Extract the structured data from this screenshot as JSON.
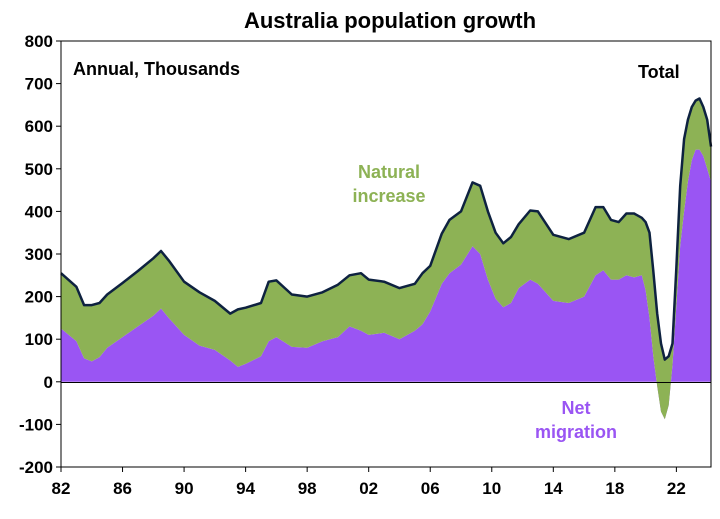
{
  "chart_data": {
    "type": "area",
    "title": "Australia population growth",
    "subtitle": "Annual, Thousands",
    "xlabel": "",
    "ylabel": "",
    "x_tick_labels": [
      "82",
      "86",
      "90",
      "94",
      "98",
      "02",
      "06",
      "10",
      "14",
      "18",
      "22"
    ],
    "y_ticks": [
      800,
      700,
      600,
      500,
      400,
      300,
      200,
      100,
      0,
      -100,
      -200
    ],
    "ylim": [
      -200,
      800
    ],
    "xlim": [
      1982,
      2024.25
    ],
    "grid": false,
    "annotations": {
      "total": "Total",
      "natural_line1": "Natural",
      "natural_line2": "increase",
      "net_line1": "Net",
      "net_line2": "migration"
    },
    "colors": {
      "net_migration": "#9a55f3",
      "natural_increase": "#8db255",
      "total_line": "#0e2240"
    },
    "x": [
      1982,
      1983,
      1983.5,
      1984,
      1984.5,
      1985,
      1986,
      1987,
      1988,
      1988.5,
      1989,
      1990,
      1991,
      1992,
      1993,
      1993.5,
      1994,
      1995,
      1995.5,
      1996,
      1997,
      1998,
      1999,
      2000,
      2000.75,
      2001.5,
      2002,
      2003,
      2004,
      2005,
      2005.5,
      2006,
      2006.75,
      2007.25,
      2008,
      2008.75,
      2009.25,
      2009.75,
      2010.25,
      2010.75,
      2011.25,
      2011.75,
      2012.5,
      2013,
      2014,
      2015,
      2016,
      2016.75,
      2017.25,
      2017.75,
      2018.25,
      2018.75,
      2019.25,
      2019.75,
      2020,
      2020.25,
      2020.5,
      2020.75,
      2021,
      2021.25,
      2021.5,
      2021.75,
      2022,
      2022.25,
      2022.5,
      2022.75,
      2023,
      2023.25,
      2023.5,
      2023.75,
      2024,
      2024.25
    ],
    "series": [
      {
        "name": "Net migration",
        "values": [
          125,
          95,
          55,
          48,
          58,
          80,
          105,
          130,
          155,
          172,
          150,
          110,
          85,
          75,
          50,
          35,
          42,
          60,
          95,
          105,
          82,
          80,
          95,
          105,
          130,
          120,
          110,
          115,
          100,
          120,
          135,
          165,
          230,
          255,
          275,
          318,
          300,
          240,
          195,
          175,
          185,
          220,
          240,
          230,
          190,
          185,
          200,
          250,
          262,
          240,
          240,
          250,
          245,
          250,
          215,
          150,
          60,
          -10,
          -70,
          -88,
          -55,
          40,
          180,
          320,
          400,
          470,
          520,
          545,
          545,
          530,
          500,
          470
        ]
      },
      {
        "name": "Natural increase",
        "values": [
          130,
          128,
          125,
          132,
          127,
          125,
          127,
          130,
          135,
          135,
          135,
          125,
          125,
          115,
          110,
          135,
          132,
          125,
          140,
          133,
          123,
          120,
          115,
          123,
          120,
          135,
          130,
          120,
          120,
          110,
          120,
          107,
          118,
          125,
          125,
          150,
          160,
          160,
          155,
          150,
          155,
          150,
          162,
          170,
          155,
          150,
          150,
          160,
          148,
          140,
          135,
          145,
          150,
          135,
          160,
          200,
          200,
          170,
          160,
          140,
          115,
          50,
          90,
          140,
          170,
          145,
          125,
          115,
          120,
          115,
          115,
          82
        ]
      }
    ],
    "total_values": [
      255,
      223,
      180,
      180,
      185,
      205,
      232,
      260,
      290,
      307,
      285,
      235,
      210,
      190,
      160,
      170,
      174,
      185,
      235,
      238,
      205,
      200,
      210,
      228,
      250,
      255,
      240,
      235,
      220,
      230,
      255,
      272,
      348,
      380,
      400,
      468,
      460,
      400,
      350,
      325,
      340,
      370,
      402,
      400,
      345,
      335,
      350,
      410,
      410,
      380,
      375,
      395,
      395,
      385,
      375,
      350,
      260,
      160,
      90,
      52,
      60,
      90,
      270,
      460,
      570,
      615,
      645,
      660,
      665,
      645,
      615,
      552
    ]
  }
}
